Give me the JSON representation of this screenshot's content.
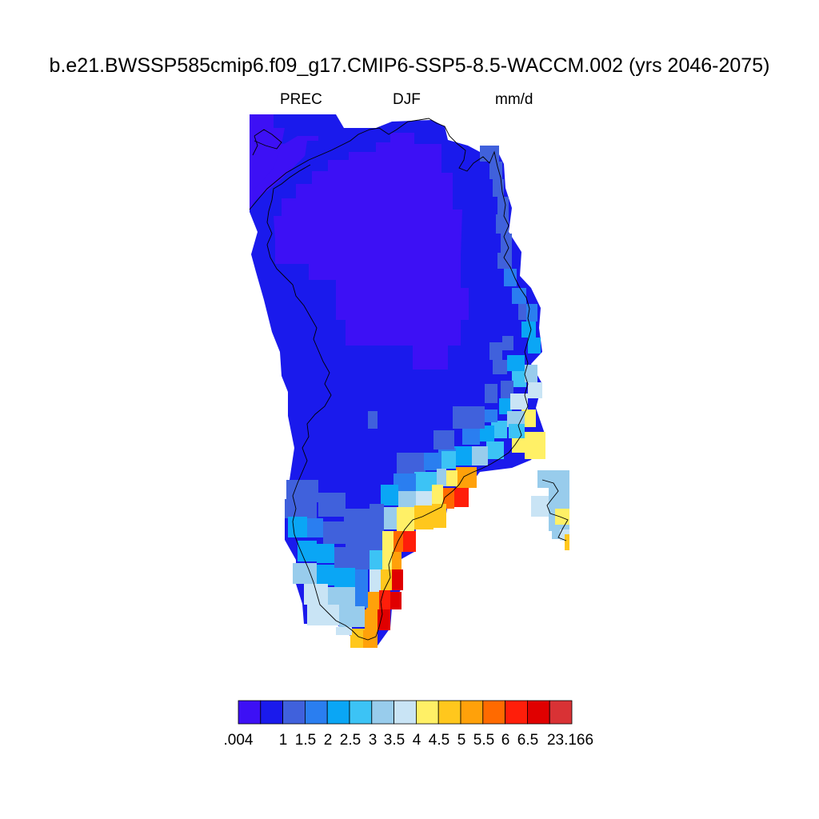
{
  "title": "b.e21.BWSSP585cmip6.f09_g17.CMIP6-SSP5-8.5-WACCM.002 (yrs 2046-2075)",
  "subtitle": {
    "variable": "PREC",
    "season": "DJF",
    "units": "mm/d"
  },
  "colorbar": {
    "tick_labels": [
      ".004",
      "1",
      "1.5",
      "2",
      "2.5",
      "3",
      "3.5",
      "4",
      "4.5",
      "5",
      "5.5",
      "6",
      "6.5",
      "23.166"
    ],
    "colors": [
      "#3d10f5",
      "#1a1aec",
      "#4061dc",
      "#2a7ef0",
      "#0aa6f5",
      "#3cc3f5",
      "#98ccec",
      "#c9e4f5",
      "#fff066",
      "#ffc71d",
      "#ffa10a",
      "#ff6a00",
      "#ff1e0a",
      "#e00000",
      "#d93235"
    ]
  },
  "map": {
    "region": "Greenland",
    "coastline_color": "#000000",
    "missing_color": "#ffffff"
  }
}
